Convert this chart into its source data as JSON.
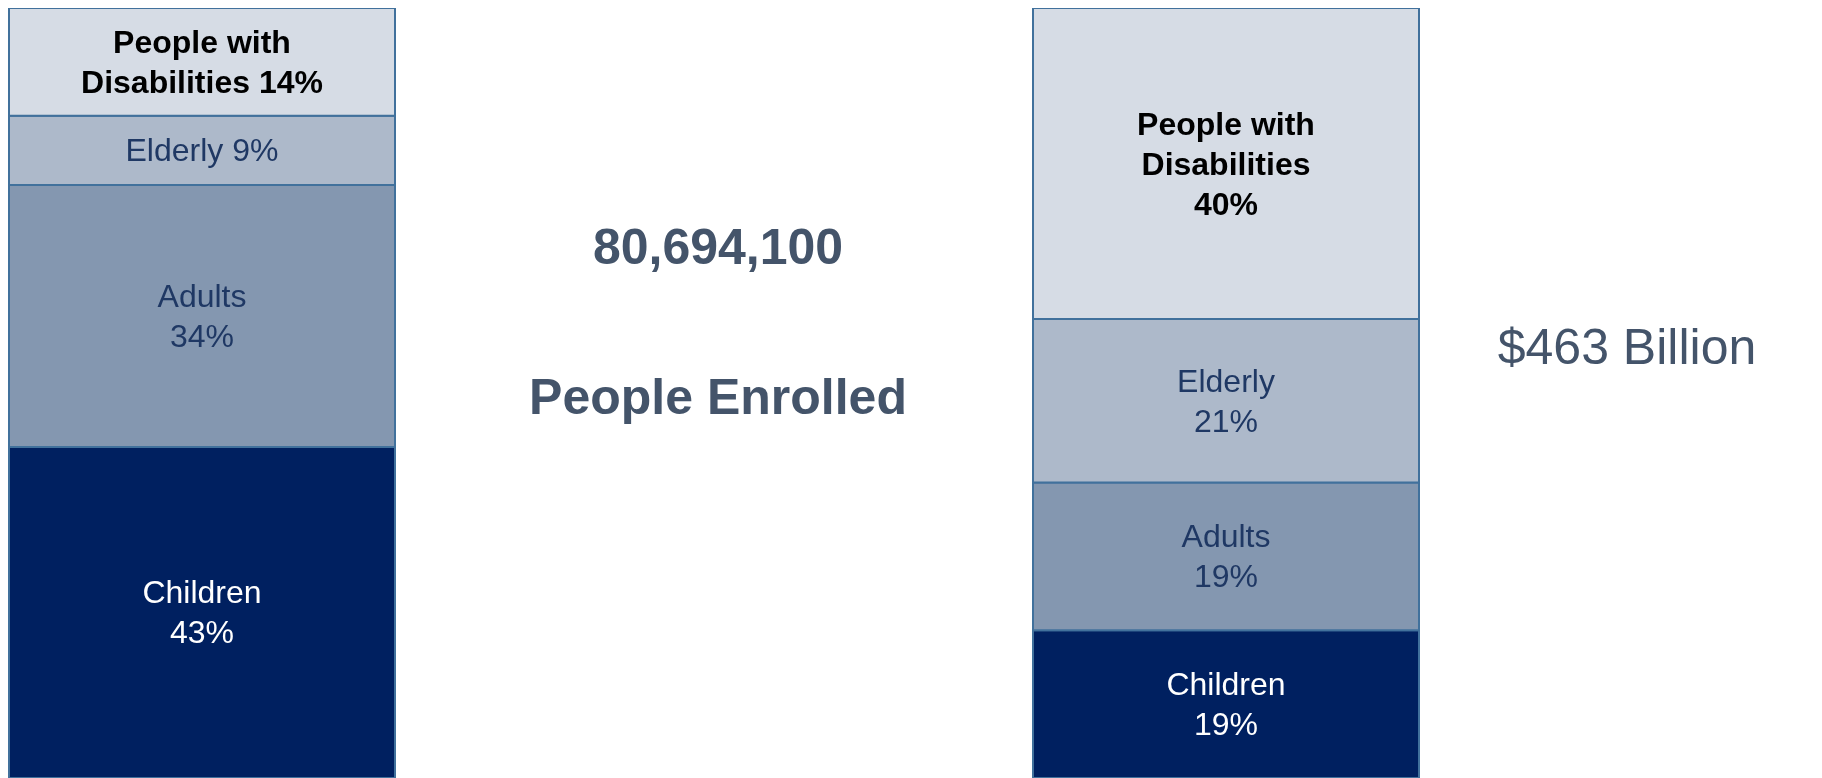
{
  "chart_data": [
    {
      "type": "bar",
      "stacked": true,
      "categories": [
        null
      ],
      "annotations": [
        "80,694,100",
        "People Enrolled"
      ],
      "series": [
        {
          "name": "Children",
          "color": "#002060",
          "values": [
            43
          ],
          "value_labels": [
            "43%"
          ]
        },
        {
          "name": "Adults",
          "color": "#8497b0",
          "values": [
            34
          ],
          "value_labels": [
            "34%"
          ]
        },
        {
          "name": "Elderly",
          "color": "#adb9ca",
          "values": [
            9
          ],
          "value_labels": [
            "9%"
          ]
        },
        {
          "name": "People with Disabilities",
          "color": "#d6dce5",
          "values": [
            14
          ],
          "value_labels": [
            "14%"
          ]
        }
      ]
    },
    {
      "type": "bar",
      "stacked": true,
      "categories": [
        null
      ],
      "annotations": [
        "$463 Billion"
      ],
      "series": [
        {
          "name": "Children",
          "color": "#002060",
          "values": [
            19
          ],
          "value_labels": [
            "19%"
          ]
        },
        {
          "name": "Adults",
          "color": "#8497b0",
          "values": [
            19
          ],
          "value_labels": [
            "19%"
          ]
        },
        {
          "name": "Elderly",
          "color": "#adb9ca",
          "values": [
            21
          ],
          "value_labels": [
            "21%"
          ]
        },
        {
          "name": "People with Disabilities",
          "color": "#d6dce5",
          "values": [
            40
          ],
          "value_labels": [
            "40%"
          ]
        }
      ]
    }
  ]
}
